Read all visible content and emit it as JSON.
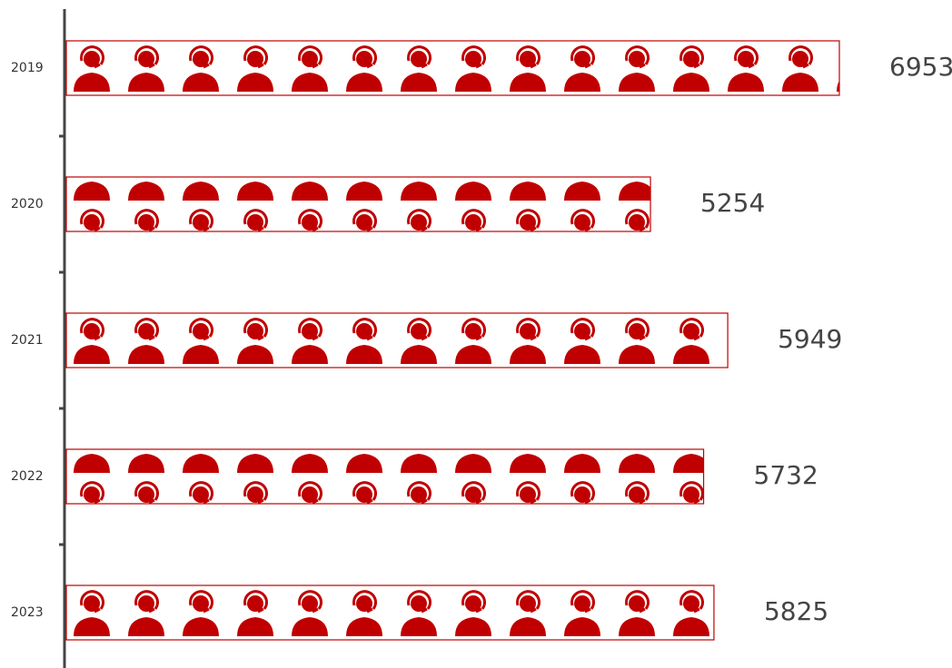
{
  "chart_data": {
    "type": "pictograph_bar",
    "categories": [
      "2019",
      "2020",
      "2021",
      "2022",
      "2023"
    ],
    "values": [
      6953,
      5254,
      5949,
      5732,
      5825
    ],
    "color": "#c00000"
  }
}
